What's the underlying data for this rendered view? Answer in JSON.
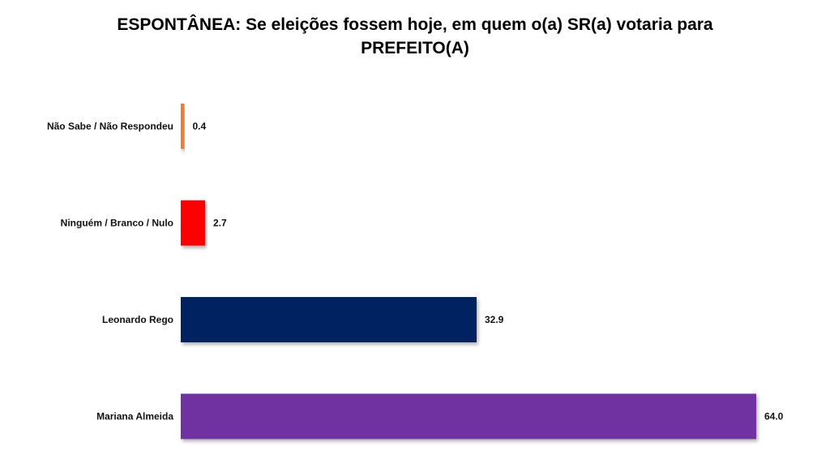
{
  "chart_data": {
    "type": "bar",
    "orientation": "horizontal",
    "title": "ESPONTÂNEA: Se eleições fossem hoje, em quem o(a) SR(a) votaria para PREFEITO(A)",
    "categories": [
      "Não Sabe / Não Respondeu",
      "Ninguém / Branco / Nulo",
      "Leonardo Rego",
      "Mariana Almeida"
    ],
    "values": [
      0.4,
      2.7,
      32.9,
      64.0
    ],
    "value_labels": [
      "0.4",
      "2.7",
      "32.9",
      "64.0"
    ],
    "colors": [
      "#ED7D31",
      "#FF0000",
      "#002060",
      "#7030A0"
    ],
    "xlim": [
      0,
      64.0
    ],
    "grid": false,
    "legend": "none"
  }
}
